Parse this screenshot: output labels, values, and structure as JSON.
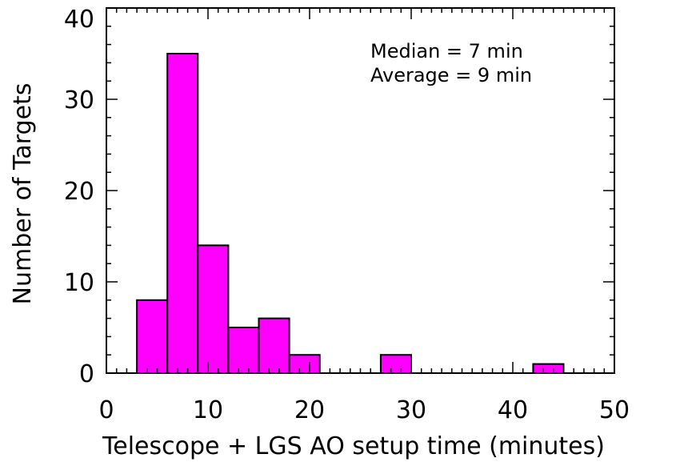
{
  "chart_data": {
    "type": "bar",
    "subtype": "histogram",
    "bin_width": 3,
    "bins": [
      {
        "x0": 3,
        "x1": 6,
        "count": 8
      },
      {
        "x0": 6,
        "x1": 9,
        "count": 35
      },
      {
        "x0": 9,
        "x1": 12,
        "count": 14
      },
      {
        "x0": 12,
        "x1": 15,
        "count": 5
      },
      {
        "x0": 15,
        "x1": 18,
        "count": 6
      },
      {
        "x0": 18,
        "x1": 21,
        "count": 2
      },
      {
        "x0": 21,
        "x1": 24,
        "count": 0
      },
      {
        "x0": 24,
        "x1": 27,
        "count": 0
      },
      {
        "x0": 27,
        "x1": 30,
        "count": 2
      },
      {
        "x0": 30,
        "x1": 33,
        "count": 0
      },
      {
        "x0": 33,
        "x1": 36,
        "count": 0
      },
      {
        "x0": 36,
        "x1": 39,
        "count": 0
      },
      {
        "x0": 39,
        "x1": 42,
        "count": 0
      },
      {
        "x0": 42,
        "x1": 45,
        "count": 1
      }
    ],
    "xlabel": "Telescope + LGS AO setup time (minutes)",
    "ylabel": "Number of Targets",
    "xlim": [
      0,
      50
    ],
    "ylim": [
      0,
      40
    ],
    "xticks": [
      "0",
      "10",
      "20",
      "30",
      "40",
      "50"
    ],
    "yticks": [
      "0",
      "10",
      "20",
      "30",
      "40"
    ],
    "annotations": [
      "Median = 7 min",
      "Average = 9 min"
    ],
    "fill_color": "#ff00ff",
    "grid": false
  }
}
